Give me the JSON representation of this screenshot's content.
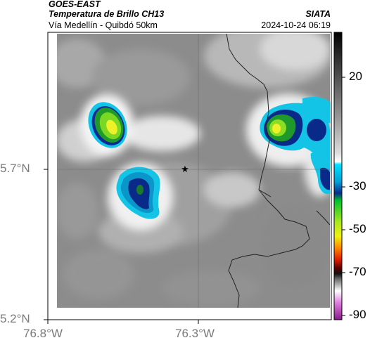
{
  "header": {
    "satellite": "GOES-EAST",
    "product": "Temperatura de Brillo CH13",
    "region": "Vía Medellín - Quibdó 50km",
    "source": "SIATA",
    "datetime": "2024-10-24 06:19"
  },
  "map": {
    "lat_ticks": [
      "5.7°N",
      "5.2°N"
    ],
    "lon_ticks": [
      "76.8°W",
      "76.3°W"
    ],
    "marker": "star-marker",
    "colors": {
      "background_gray": "#8e8e8e",
      "cold_cloud_cyan": "#12c8e6",
      "deep_blue": "#0a1d8a",
      "green": "#2ecc1a",
      "yellow": "#eef02a"
    }
  },
  "colorbar": {
    "ticks": [
      "20",
      "-30",
      "-50",
      "-70",
      "-90"
    ]
  }
}
